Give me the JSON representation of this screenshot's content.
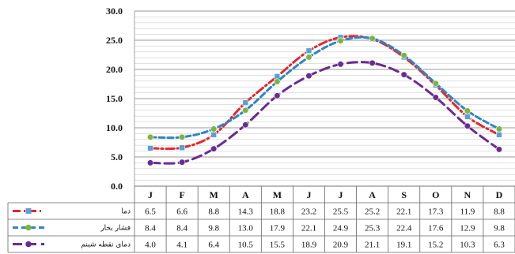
{
  "chart_data": {
    "type": "line",
    "categories": [
      "J",
      "F",
      "M",
      "A",
      "M",
      "J",
      "J",
      "A",
      "S",
      "O",
      "N",
      "D"
    ],
    "ylim": [
      0,
      30
    ],
    "yticks": [
      "0.0",
      "5.0",
      "10.0",
      "15.0",
      "20.0",
      "25.0",
      "30.0"
    ],
    "grid": true,
    "legend": "data-table-left",
    "series": [
      {
        "name": "دما",
        "color": "#e8262c",
        "dash": "dash-dot",
        "values": [
          6.5,
          6.6,
          8.8,
          14.3,
          18.8,
          23.2,
          25.5,
          25.2,
          22.1,
          17.3,
          11.9,
          8.8
        ],
        "labels": [
          "6.5",
          "6.6",
          "8.8",
          "14.3",
          "18.8",
          "23.2",
          "25.5",
          "25.2",
          "22.1",
          "17.3",
          "11.9",
          "8.8"
        ]
      },
      {
        "name": "فشار بخار",
        "color": "#2e86c1",
        "marker_color": "#7cb342",
        "dash": "dash",
        "values": [
          8.4,
          8.4,
          9.8,
          13.0,
          17.9,
          22.1,
          24.9,
          25.3,
          22.4,
          17.6,
          12.9,
          9.8
        ],
        "labels": [
          "8.4",
          "8.4",
          "9.8",
          "13.0",
          "17.9",
          "22.1",
          "24.9",
          "25.3",
          "22.4",
          "17.6",
          "12.9",
          "9.8"
        ]
      },
      {
        "name": "دمای نقطه شبنم",
        "color": "#6a2c91",
        "dash": "long-dash",
        "values": [
          4.0,
          4.1,
          6.4,
          10.5,
          15.5,
          18.9,
          20.9,
          21.1,
          19.1,
          15.2,
          10.3,
          6.3
        ],
        "labels": [
          "4.0",
          "4.1",
          "6.4",
          "10.5",
          "15.5",
          "18.9",
          "20.9",
          "21.1",
          "19.1",
          "15.2",
          "10.3",
          "6.3"
        ]
      }
    ]
  }
}
